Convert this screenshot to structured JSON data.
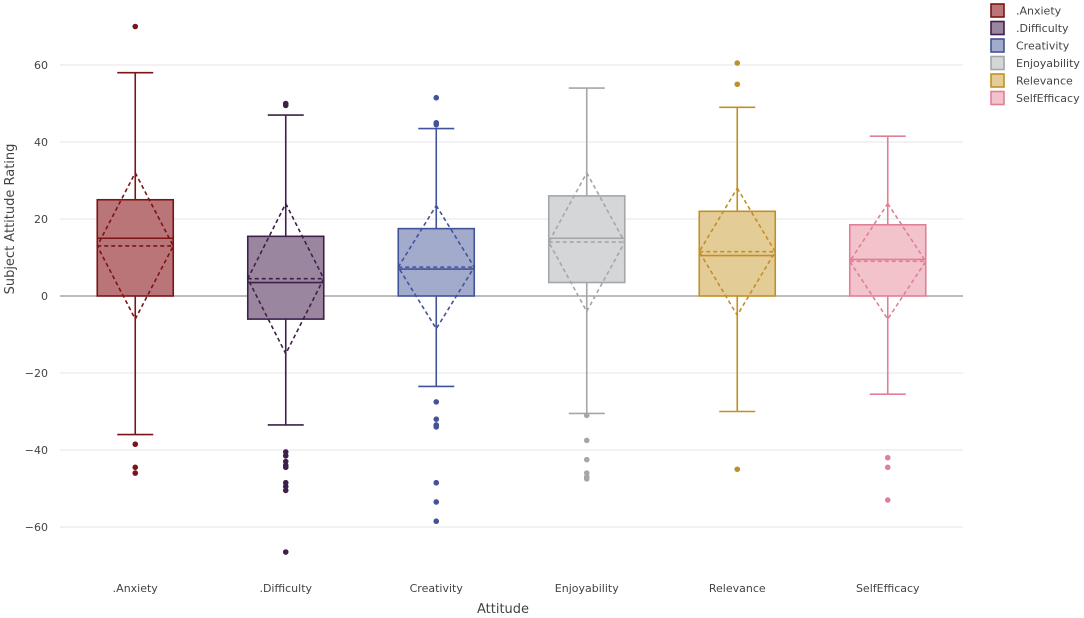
{
  "chart_data": {
    "type": "box",
    "xlabel": "Attitude",
    "ylabel": "Subject Attitude Rating",
    "ylim": [
      -72,
      72
    ],
    "yticks": [
      -60,
      -40,
      -20,
      0,
      20,
      40,
      60
    ],
    "ytick_labels": [
      "−60",
      "−40",
      "−20",
      "0",
      "20",
      "40",
      "60"
    ],
    "grid": true,
    "legend_position": "top-right",
    "categories": [
      ".Anxiety",
      ".Difficulty",
      "Creativity",
      "Enjoyability",
      "Relevance",
      "SelfEfficacy"
    ],
    "series": [
      {
        "name": ".Anxiety",
        "color": "#7b1416",
        "fill": "#b97577",
        "q1": 0,
        "median": 15,
        "q3": 25,
        "whisker_low": -36,
        "whisker_high": 58,
        "mean": 13,
        "sd": 19,
        "outliers": [
          70,
          -38.5,
          -44.5,
          -46
        ]
      },
      {
        "name": ".Difficulty",
        "color": "#3f1f4c",
        "fill": "#9a869f",
        "q1": -6,
        "median": 3.5,
        "q3": 15.5,
        "whisker_low": -33.5,
        "whisker_high": 47,
        "mean": 4.5,
        "sd": 19.5,
        "outliers": [
          50,
          49.5,
          -40.5,
          -41.5,
          -43,
          -44,
          -44.5,
          -48.5,
          -49.5,
          -50.5,
          -66.5
        ]
      },
      {
        "name": "Creativity",
        "color": "#42539a",
        "fill": "#a3abcc",
        "q1": 0,
        "median": 7,
        "q3": 17.5,
        "whisker_low": -23.5,
        "whisker_high": 43.5,
        "mean": 7.5,
        "sd": 16,
        "outliers": [
          51.5,
          45,
          44.5,
          -27.5,
          -32,
          -33.5,
          -34,
          -48.5,
          -53.5,
          -58.5
        ]
      },
      {
        "name": "Enjoyability",
        "color": "#a4a6a8",
        "fill": "#d4d6d8",
        "q1": 3.5,
        "median": 15,
        "q3": 26,
        "whisker_low": -30.5,
        "whisker_high": 54,
        "mean": 14,
        "sd": 18,
        "outliers": [
          -31,
          -37.5,
          -42.5,
          -46,
          -47,
          -47.5
        ]
      },
      {
        "name": "Relevance",
        "color": "#c28f27",
        "fill": "#e3cc96",
        "q1": 0,
        "median": 10.5,
        "q3": 22,
        "whisker_low": -30,
        "whisker_high": 49,
        "mean": 11.5,
        "sd": 16.5,
        "outliers": [
          60.5,
          55,
          -45
        ]
      },
      {
        "name": "SelfEfficacy",
        "color": "#e17f94",
        "fill": "#f3c3cc",
        "q1": 0,
        "median": 9.5,
        "q3": 18.5,
        "whisker_low": -25.5,
        "whisker_high": 41.5,
        "mean": 9,
        "sd": 15,
        "outliers": [
          -42,
          -44.5,
          -53
        ]
      }
    ]
  }
}
